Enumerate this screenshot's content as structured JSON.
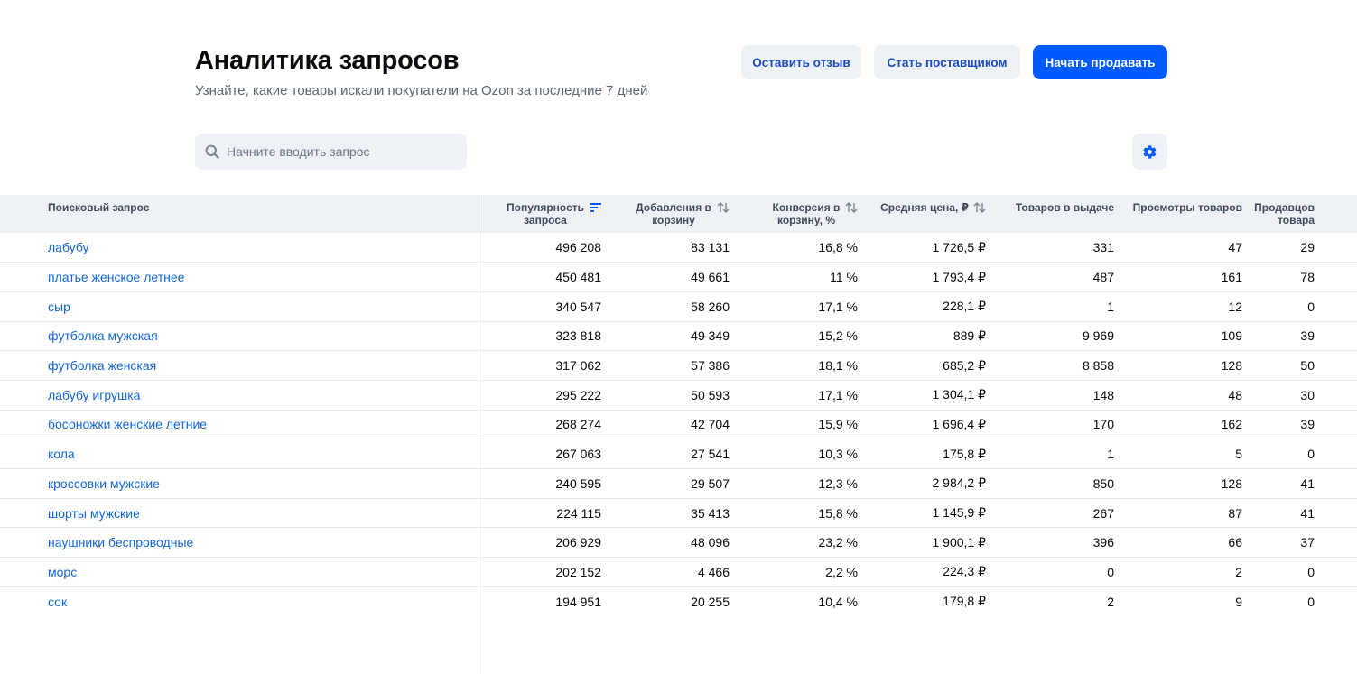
{
  "header": {
    "title": "Аналитика запросов",
    "subtitle": "Узнайте, какие товары искали покупатели на Ozon за последние 7 дней"
  },
  "actions": {
    "feedback_label": "Оставить отзыв",
    "supplier_label": "Стать поставщиком",
    "start_selling_label": "Начать продавать"
  },
  "colors": {
    "primary": "#005bff",
    "secondary_bg": "#eef1f6",
    "link": "#1266d6"
  },
  "search": {
    "placeholder": "Начните вводить запрос",
    "icon": "search-icon"
  },
  "settings": {
    "icon": "gear-icon"
  },
  "table": {
    "columns": [
      {
        "label": "Поисковый запрос",
        "sortable": false
      },
      {
        "label": "Популярность запроса",
        "sortable": true,
        "sort_active": true
      },
      {
        "label": "Добавления в корзину",
        "sortable": true
      },
      {
        "label": "Конверсия в корзину, %",
        "sortable": true
      },
      {
        "label": "Средняя цена, ₽",
        "sortable": true
      },
      {
        "label": "Товаров в выдаче",
        "sortable": false
      },
      {
        "label": "Просмотры товаров",
        "sortable": false
      },
      {
        "label": "Продавцов товара",
        "sortable": false
      }
    ],
    "rows": [
      [
        "лабубу",
        "496 208",
        "83 131",
        "16,8 %",
        "1 726,5 ₽",
        "331",
        "47",
        "29"
      ],
      [
        "платье женское летнее",
        "450 481",
        "49 661",
        "11 %",
        "1 793,4 ₽",
        "487",
        "161",
        "78"
      ],
      [
        "сыр",
        "340 547",
        "58 260",
        "17,1 %",
        "228,1 ₽",
        "1",
        "12",
        "0"
      ],
      [
        "футболка мужская",
        "323 818",
        "49 349",
        "15,2 %",
        "889 ₽",
        "9 969",
        "109",
        "39"
      ],
      [
        "футболка женская",
        "317 062",
        "57 386",
        "18,1 %",
        "685,2 ₽",
        "8 858",
        "128",
        "50"
      ],
      [
        "лабубу игрушка",
        "295 222",
        "50 593",
        "17,1 %",
        "1 304,1 ₽",
        "148",
        "48",
        "30"
      ],
      [
        "босоножки женские летние",
        "268 274",
        "42 704",
        "15,9 %",
        "1 696,4 ₽",
        "170",
        "162",
        "39"
      ],
      [
        "кола",
        "267 063",
        "27 541",
        "10,3 %",
        "175,8 ₽",
        "1",
        "5",
        "0"
      ],
      [
        "кроссовки мужские",
        "240 595",
        "29 507",
        "12,3 %",
        "2 984,2 ₽",
        "850",
        "128",
        "41"
      ],
      [
        "шорты мужские",
        "224 115",
        "35 413",
        "15,8 %",
        "1 145,9 ₽",
        "267",
        "87",
        "41"
      ],
      [
        "наушники беспроводные",
        "206 929",
        "48 096",
        "23,2 %",
        "1 900,1 ₽",
        "396",
        "66",
        "37"
      ],
      [
        "морс",
        "202 152",
        "4 466",
        "2,2 %",
        "224,3 ₽",
        "0",
        "2",
        "0"
      ],
      [
        "сок",
        "194 951",
        "20 255",
        "10,4 %",
        "179,8 ₽",
        "2",
        "9",
        "0"
      ]
    ]
  }
}
